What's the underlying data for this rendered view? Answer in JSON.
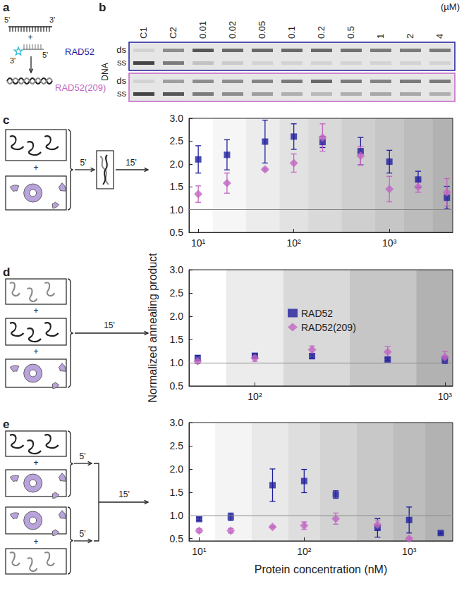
{
  "panel_labels": [
    "a",
    "b",
    "c",
    "d",
    "e"
  ],
  "symbols": {
    "plus": "+"
  },
  "panel_a": {
    "long_strand_ends": [
      "5'",
      "3'"
    ],
    "short_strand_ends": [
      "3'",
      "5'"
    ]
  },
  "panel_b": {
    "lanes": [
      "C1",
      "C2",
      "0.01",
      "0.02",
      "0.05",
      "0.1",
      "0.2",
      "0.5",
      "1",
      "2",
      "4"
    ],
    "unit": "(µM)",
    "axis_label": "DNA",
    "band_labels": [
      "ds",
      "ss"
    ],
    "gels": [
      {
        "label": "RAD52",
        "color": "#1f1f9e"
      },
      {
        "label": "RAD52(209)",
        "color": "#c266c2"
      }
    ]
  },
  "schematics": {
    "c": [
      "5'",
      "15'"
    ],
    "d": [
      "15'"
    ],
    "e": [
      "5'",
      "5'",
      "15'"
    ]
  },
  "y_label": "Normalized annealing product",
  "chart_data": [
    {
      "type": "scatter",
      "log": "x",
      "grid": false,
      "xlim": [
        8,
        4600
      ],
      "xticks": [
        {
          "value": 10,
          "label": "10¹"
        },
        {
          "value": 100,
          "label": "10²"
        },
        {
          "value": 1000,
          "label": "10³"
        }
      ],
      "ylim": [
        0.5,
        3.0
      ],
      "yticks": [
        0.5,
        {
          "value": 1.0,
          "label": "1.0"
        },
        1.5,
        {
          "value": 2.0,
          "label": "2.0"
        },
        2.5,
        {
          "value": 3.0,
          "label": "3.0"
        }
      ],
      "reference_line": 1.0,
      "x": [
        10,
        20,
        50,
        100,
        200,
        500,
        1000,
        2000,
        4000
      ],
      "series": [
        {
          "name": "RAD52",
          "color": "#1f1f9e",
          "marker": "square",
          "values": [
            2.1,
            2.2,
            2.49,
            2.6,
            2.48,
            2.28,
            2.05,
            1.66,
            1.26
          ],
          "errors": [
            0.3,
            0.33,
            0.47,
            0.28,
            0.12,
            0.3,
            0.25,
            0.18,
            0.25
          ]
        },
        {
          "name": "RAD52(209)",
          "color": "#c266c2",
          "marker": "diamond",
          "values": [
            1.34,
            1.58,
            1.88,
            2.02,
            2.58,
            2.18,
            1.45,
            1.5,
            1.38
          ],
          "errors": [
            0.18,
            0.22,
            0.03,
            0.2,
            0.3,
            0.2,
            0.28,
            0.12,
            0.3
          ]
        }
      ]
    },
    {
      "type": "scatter",
      "log": "x",
      "grid": false,
      "legend": "center",
      "xlim": [
        45,
        1100
      ],
      "xticks": [
        {
          "value": 100,
          "label": "10²"
        },
        {
          "value": 1000,
          "label": "10³"
        }
      ],
      "ylim": [
        0.5,
        3.0
      ],
      "yticks": [
        0.5,
        {
          "value": 1.0,
          "label": "1.0"
        },
        1.5,
        {
          "value": 2.0,
          "label": "2.0"
        },
        2.5,
        {
          "value": 3.0,
          "label": "3.0"
        }
      ],
      "reference_line": 1.0,
      "x": [
        50,
        100,
        200,
        500,
        1000
      ],
      "series": [
        {
          "name": "RAD52",
          "color": "#1f1f9e",
          "marker": "square",
          "values": [
            1.1,
            1.15,
            1.14,
            1.07,
            1.06
          ],
          "errors": [
            0.06,
            0.05,
            0.05,
            0.03,
            0.08
          ]
        },
        {
          "name": "RAD52(209)",
          "color": "#c266c2",
          "marker": "diamond",
          "values": [
            1.03,
            1.1,
            1.28,
            1.23,
            1.12
          ],
          "errors": [
            0.05,
            0.07,
            0.08,
            0.12,
            0.12
          ]
        }
      ]
    },
    {
      "type": "scatter",
      "log": "x",
      "grid": false,
      "x_label": "Protein concentration (nM)",
      "xlim": [
        8,
        2600
      ],
      "xticks": [
        {
          "value": 10,
          "label": "10¹"
        },
        {
          "value": 100,
          "label": "10²"
        },
        {
          "value": 1000,
          "label": "10³"
        }
      ],
      "ylim": [
        0.45,
        3.0
      ],
      "yticks": [
        0.5,
        {
          "value": 1.0,
          "label": "1.0"
        },
        1.5,
        {
          "value": 2.0,
          "label": "2.0"
        },
        2.5,
        {
          "value": 3.0,
          "label": "3.0"
        }
      ],
      "reference_line": 1.0,
      "x": [
        10,
        20,
        50,
        100,
        200,
        500,
        1000,
        2000
      ],
      "series": [
        {
          "name": "RAD52",
          "color": "#1f1f9e",
          "marker": "square",
          "values": [
            0.92,
            0.97,
            1.65,
            1.74,
            1.45,
            0.73,
            0.9,
            0.62
          ],
          "errors": [
            0.03,
            0.08,
            0.35,
            0.25,
            0.08,
            0.2,
            0.28,
            0.02
          ]
        },
        {
          "name": "RAD52(209)",
          "color": "#c266c2",
          "marker": "diamond",
          "values": [
            0.67,
            0.67,
            0.75,
            0.78,
            0.93,
            0.8,
            0.5,
            null
          ],
          "errors": [
            0.04,
            0.05,
            0.02,
            0.08,
            0.12,
            0.1,
            0.02,
            null
          ]
        }
      ]
    }
  ]
}
